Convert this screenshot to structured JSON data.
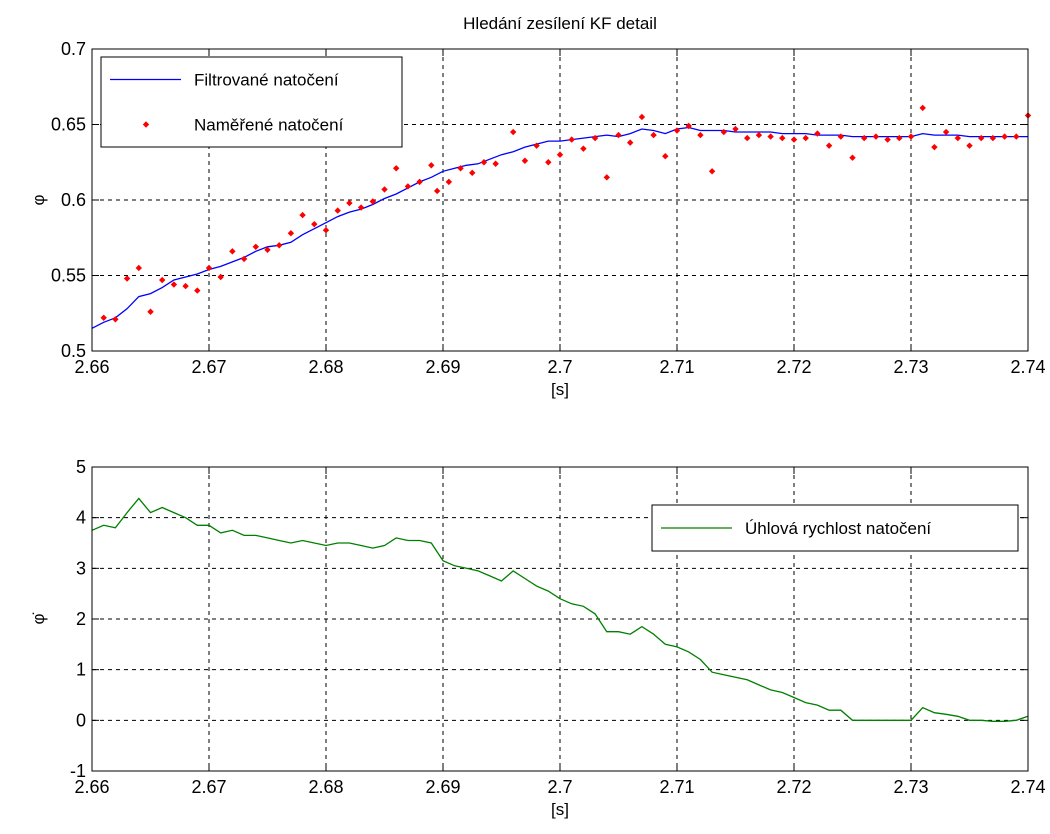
{
  "chart_data": [
    {
      "type": "line",
      "title": "Hledání zesílení KF detail",
      "xlabel": "[s]",
      "ylabel": "φ",
      "xlim": [
        2.66,
        2.74
      ],
      "ylim": [
        0.5,
        0.7
      ],
      "xticks": [
        2.66,
        2.67,
        2.68,
        2.69,
        2.7,
        2.71,
        2.72,
        2.73,
        2.74
      ],
      "xtick_labels": [
        "2.66",
        "2.67",
        "2.68",
        "2.69",
        "2.7",
        "2.71",
        "2.72",
        "2.73",
        "2.74"
      ],
      "yticks": [
        0.5,
        0.55,
        0.6,
        0.65,
        0.7
      ],
      "ytick_labels": [
        "0.5",
        "0.55",
        "0.6",
        "0.65",
        "0.7"
      ],
      "grid": true,
      "legend_position": "top-left",
      "series": [
        {
          "name": "Filtrované natočení",
          "kind": "line",
          "color": "#0000ff",
          "x": [
            2.66,
            2.661,
            2.662,
            2.663,
            2.664,
            2.665,
            2.666,
            2.667,
            2.668,
            2.669,
            2.67,
            2.671,
            2.672,
            2.673,
            2.674,
            2.675,
            2.676,
            2.677,
            2.678,
            2.679,
            2.68,
            2.681,
            2.682,
            2.683,
            2.684,
            2.685,
            2.686,
            2.687,
            2.688,
            2.689,
            2.69,
            2.691,
            2.692,
            2.693,
            2.694,
            2.695,
            2.696,
            2.697,
            2.698,
            2.699,
            2.7,
            2.701,
            2.702,
            2.703,
            2.704,
            2.705,
            2.706,
            2.707,
            2.708,
            2.709,
            2.71,
            2.711,
            2.712,
            2.713,
            2.714,
            2.715,
            2.716,
            2.717,
            2.718,
            2.719,
            2.72,
            2.721,
            2.722,
            2.723,
            2.724,
            2.725,
            2.726,
            2.727,
            2.728,
            2.729,
            2.73,
            2.731,
            2.732,
            2.733,
            2.734,
            2.735,
            2.736,
            2.737,
            2.738,
            2.739,
            2.74
          ],
          "y": [
            0.515,
            0.519,
            0.522,
            0.528,
            0.536,
            0.538,
            0.542,
            0.547,
            0.549,
            0.551,
            0.554,
            0.556,
            0.559,
            0.562,
            0.566,
            0.569,
            0.57,
            0.572,
            0.577,
            0.581,
            0.585,
            0.589,
            0.592,
            0.594,
            0.597,
            0.601,
            0.604,
            0.608,
            0.612,
            0.615,
            0.619,
            0.621,
            0.623,
            0.624,
            0.627,
            0.63,
            0.632,
            0.635,
            0.637,
            0.639,
            0.639,
            0.64,
            0.641,
            0.642,
            0.643,
            0.642,
            0.644,
            0.647,
            0.646,
            0.644,
            0.647,
            0.648,
            0.646,
            0.646,
            0.646,
            0.645,
            0.645,
            0.645,
            0.645,
            0.644,
            0.644,
            0.644,
            0.643,
            0.643,
            0.643,
            0.642,
            0.642,
            0.642,
            0.642,
            0.642,
            0.642,
            0.644,
            0.643,
            0.643,
            0.643,
            0.642,
            0.642,
            0.642,
            0.642,
            0.642,
            0.642
          ]
        },
        {
          "name": "Naměřené natočení",
          "kind": "scatter",
          "color": "#ff0000",
          "x": [
            2.661,
            2.662,
            2.663,
            2.664,
            2.665,
            2.666,
            2.667,
            2.668,
            2.669,
            2.67,
            2.671,
            2.672,
            2.673,
            2.674,
            2.675,
            2.676,
            2.677,
            2.678,
            2.679,
            2.68,
            2.681,
            2.682,
            2.683,
            2.684,
            2.685,
            2.686,
            2.687,
            2.688,
            2.689,
            2.6895,
            2.6905,
            2.6915,
            2.6925,
            2.6935,
            2.6945,
            2.696,
            2.697,
            2.698,
            2.699,
            2.7,
            2.701,
            2.702,
            2.703,
            2.704,
            2.705,
            2.706,
            2.707,
            2.708,
            2.709,
            2.71,
            2.711,
            2.712,
            2.713,
            2.714,
            2.715,
            2.716,
            2.717,
            2.718,
            2.719,
            2.72,
            2.721,
            2.722,
            2.723,
            2.724,
            2.725,
            2.726,
            2.727,
            2.728,
            2.729,
            2.73,
            2.731,
            2.732,
            2.733,
            2.734,
            2.735,
            2.736,
            2.737,
            2.738,
            2.739,
            2.74
          ],
          "y": [
            0.522,
            0.521,
            0.548,
            0.555,
            0.526,
            0.547,
            0.544,
            0.543,
            0.54,
            0.555,
            0.549,
            0.566,
            0.561,
            0.569,
            0.567,
            0.57,
            0.578,
            0.59,
            0.584,
            0.58,
            0.593,
            0.598,
            0.595,
            0.599,
            0.607,
            0.621,
            0.609,
            0.612,
            0.623,
            0.606,
            0.612,
            0.621,
            0.618,
            0.625,
            0.624,
            0.645,
            0.626,
            0.636,
            0.625,
            0.63,
            0.64,
            0.634,
            0.641,
            0.615,
            0.643,
            0.638,
            0.655,
            0.643,
            0.629,
            0.646,
            0.649,
            0.643,
            0.619,
            0.645,
            0.647,
            0.641,
            0.643,
            0.642,
            0.641,
            0.64,
            0.641,
            0.644,
            0.636,
            0.642,
            0.628,
            0.641,
            0.642,
            0.64,
            0.641,
            0.642,
            0.661,
            0.635,
            0.645,
            0.641,
            0.636,
            0.641,
            0.641,
            0.642,
            0.642,
            0.656
          ]
        }
      ]
    },
    {
      "type": "line",
      "title": "",
      "xlabel": "[s]",
      "ylabel": "φ̇",
      "xlim": [
        2.66,
        2.74
      ],
      "ylim": [
        -1,
        5
      ],
      "xticks": [
        2.66,
        2.67,
        2.68,
        2.69,
        2.7,
        2.71,
        2.72,
        2.73,
        2.74
      ],
      "xtick_labels": [
        "2.66",
        "2.67",
        "2.68",
        "2.69",
        "2.7",
        "2.71",
        "2.72",
        "2.73",
        "2.74"
      ],
      "yticks": [
        -1,
        0,
        1,
        2,
        3,
        4,
        5
      ],
      "ytick_labels": [
        "-1",
        "0",
        "1",
        "2",
        "3",
        "4",
        "5"
      ],
      "grid": true,
      "legend_position": "top-right",
      "series": [
        {
          "name": "Úhlová rychlost natočení",
          "kind": "line",
          "color": "#008000",
          "x": [
            2.66,
            2.661,
            2.662,
            2.663,
            2.664,
            2.665,
            2.666,
            2.667,
            2.668,
            2.669,
            2.67,
            2.671,
            2.672,
            2.673,
            2.674,
            2.675,
            2.676,
            2.677,
            2.678,
            2.679,
            2.68,
            2.681,
            2.682,
            2.683,
            2.684,
            2.685,
            2.686,
            2.687,
            2.688,
            2.689,
            2.69,
            2.691,
            2.692,
            2.693,
            2.694,
            2.695,
            2.696,
            2.697,
            2.698,
            2.699,
            2.7,
            2.701,
            2.702,
            2.703,
            2.704,
            2.705,
            2.706,
            2.707,
            2.708,
            2.709,
            2.71,
            2.711,
            2.712,
            2.713,
            2.714,
            2.715,
            2.716,
            2.717,
            2.718,
            2.719,
            2.72,
            2.721,
            2.722,
            2.723,
            2.724,
            2.725,
            2.726,
            2.727,
            2.728,
            2.729,
            2.73,
            2.731,
            2.732,
            2.733,
            2.734,
            2.735,
            2.736,
            2.737,
            2.738,
            2.739,
            2.74
          ],
          "y": [
            3.75,
            3.85,
            3.8,
            4.1,
            4.38,
            4.1,
            4.2,
            4.1,
            4.0,
            3.85,
            3.85,
            3.7,
            3.75,
            3.65,
            3.65,
            3.6,
            3.55,
            3.5,
            3.55,
            3.5,
            3.45,
            3.5,
            3.5,
            3.45,
            3.4,
            3.45,
            3.6,
            3.55,
            3.55,
            3.5,
            3.15,
            3.05,
            3.0,
            2.95,
            2.85,
            2.75,
            2.95,
            2.8,
            2.65,
            2.55,
            2.4,
            2.3,
            2.25,
            2.1,
            1.75,
            1.75,
            1.7,
            1.85,
            1.7,
            1.5,
            1.45,
            1.35,
            1.2,
            0.95,
            0.9,
            0.85,
            0.8,
            0.7,
            0.6,
            0.55,
            0.45,
            0.35,
            0.3,
            0.2,
            0.2,
            0.0,
            0.0,
            0.0,
            0.0,
            0.0,
            0.0,
            0.25,
            0.15,
            0.12,
            0.08,
            0.0,
            0.0,
            -0.02,
            -0.02,
            0.0,
            0.08
          ]
        }
      ]
    }
  ]
}
